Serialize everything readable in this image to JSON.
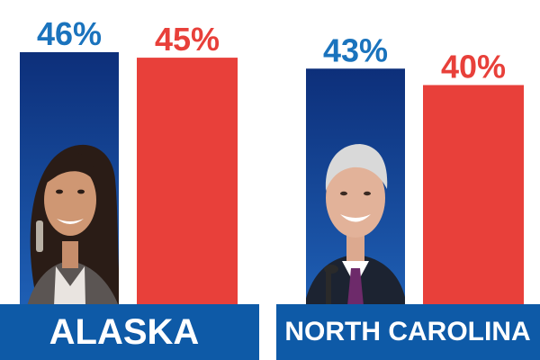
{
  "colors": {
    "dem_top": "#0d2f7a",
    "dem_bottom": "#1e5fb4",
    "dem_label": "#1a73bd",
    "rep": "#e8403a",
    "band": "#0e5aa7",
    "white": "#ffffff"
  },
  "chart_data": [
    {
      "type": "bar",
      "title": "ALASKA",
      "series": [
        {
          "values": [
            46
          ],
          "label": "46%"
        },
        {
          "values": [
            45
          ],
          "label": "45%"
        }
      ],
      "ylim": [
        0,
        57
      ],
      "images": [
        "candidate-photo"
      ]
    },
    {
      "type": "bar",
      "title": "NORTH CAROLINA",
      "series": [
        {
          "values": [
            43
          ],
          "label": "43%"
        },
        {
          "values": [
            40
          ],
          "label": "40%"
        }
      ],
      "ylim": [
        0,
        57
      ],
      "images": [
        "candidate-photo"
      ]
    }
  ]
}
